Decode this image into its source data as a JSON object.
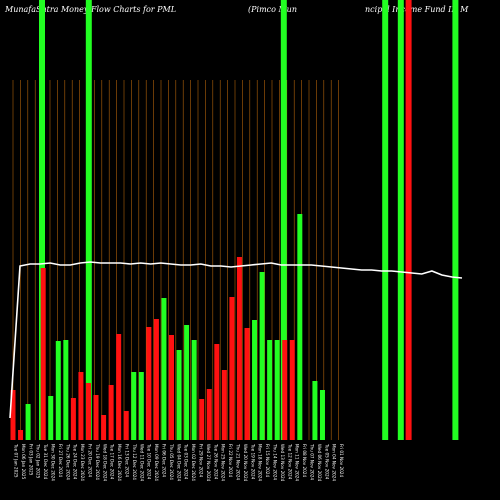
{
  "chart_data": {
    "type": "bar",
    "title_left": "MunafaSutra  Money Flow  Charts for PML",
    "title_mid": "(Pimco  Mun",
    "title_right": "ncipal Income  Fund II) M",
    "colors": {
      "up": "#22ff22",
      "down": "#ff1111",
      "grid": "#b0620a",
      "line": "#ffffff",
      "background": "#000000"
    },
    "categories": [
      "Tue 07 Jan 2025",
      "Mon 06 Jan 2025",
      "Fri 03 Jan 2025",
      "Thu 02 Jan 2025",
      "Tue 31 Dec 2024",
      "Mon 30 Dec 2024",
      "Fri 27 Dec 2024",
      "Thu 26 Dec 2024",
      "Tue 24 Dec 2024",
      "Mon 23 Dec 2024",
      "Fri 20 Dec 2024",
      "Thu 19 Dec 2024",
      "Wed 18 Dec 2024",
      "Tue 17 Dec 2024",
      "Mon 16 Dec 2024",
      "Fri 13 Dec 2024",
      "Thu 12 Dec 2024",
      "Wed 11 Dec 2024",
      "Tue 10 Dec 2024",
      "Mon 09 Dec 2024",
      "Fri 06 Dec 2024",
      "Thu 05 Dec 2024",
      "Wed 04 Dec 2024",
      "Tue 03 Dec 2024",
      "Mon 02 Dec 2024",
      "Fri 29 Nov 2024",
      "Wed 27 Nov 2024",
      "Tue 26 Nov 2024",
      "Mon 25 Nov 2024",
      "Fri 22 Nov 2024",
      "Thu 21 Nov 2024",
      "Wed 20 Nov 2024",
      "Tue 19 Nov 2024",
      "Mon 18 Nov 2024",
      "Fri 15 Nov 2024",
      "Thu 14 Nov 2024",
      "Wed 13 Nov 2024",
      "Tue 12 Nov 2024",
      "Mon 11 Nov 2024",
      "Fri 08 Nov 2024",
      "Thu 07 Nov 2024",
      "Wed 06 Nov 2024",
      "Tue 05 Nov 2024",
      "Mon 04 Nov 2024",
      "Fri 01 Nov 2024"
    ],
    "tick_labels": [
      "C 7.90 0.7%",
      "C 8.20 0.1%",
      "C 8.17 0.2%",
      "C 8.15 0.05%",
      "C 8.18 0.3%",
      "C 8.15 0.06%",
      "C 8.20 0.2%",
      "C 8.18 0.1%",
      "C 8.17 0.1%",
      "C 8.16 0.1%",
      "C 8.15 0.1%",
      "C 8.17 0.2%",
      "C 8.15 0.1%",
      "C 8.16 0.1%",
      "C 8.17 0.1%",
      "C 8.12 0.4%",
      "C 8.14 0.1%",
      "C 8.13 0.4%",
      "C 8.17 0.1%",
      "C 8.15 0.3%",
      "C 8.19 0.2%",
      "C 8.13 0.4%",
      "C 8.12 0.4%",
      "C 8.09 0.4%",
      "C 8.17 0.1%",
      "C 8.22 0.6%",
      "C 8.16 0.3%",
      "C 8.09 0.5%",
      "C 8.15 0.1%",
      "C 8.15 0.1%",
      "C 8.17 0.7%",
      "C 8.16 0.6%",
      "C 8.14 0.1%",
      "C 8.14 0.4%",
      "C 8.16 0.2%",
      "C 8.14 0.4%",
      "C 8.12 0.4%",
      "C 8.11 0.4%",
      "C 8.15 0.3%",
      "C 8.08 0.2%",
      "C 8.05 0.5%",
      "C 8.12 0.7%",
      "C 8.08 0.1%",
      "C 8.11 0.6%",
      "C 8.10 0.4%"
    ],
    "bar_values": [
      50,
      10,
      36,
      0,
      172,
      44,
      99,
      100,
      42,
      68,
      57,
      45,
      25,
      55,
      106,
      29,
      68,
      68,
      113,
      121,
      142,
      105,
      90,
      115,
      100,
      41,
      51,
      96,
      70,
      143,
      183,
      112,
      120,
      168,
      100,
      100,
      100,
      100,
      226,
      0,
      59,
      50,
      0,
      0,
      0
    ],
    "bar_colors": [
      "red",
      "red",
      "green",
      "green",
      "red",
      "green",
      "green",
      "green",
      "red",
      "red",
      "red",
      "red",
      "red",
      "red",
      "red",
      "red",
      "green",
      "green",
      "red",
      "red",
      "green",
      "red",
      "green",
      "green",
      "green",
      "red",
      "red",
      "red",
      "red",
      "red",
      "red",
      "red",
      "green",
      "green",
      "green",
      "green",
      "red",
      "red",
      "green",
      "green",
      "green",
      "green",
      "green",
      "green",
      "green"
    ],
    "full_height_bars": [
      {
        "index": 5,
        "color": "green"
      },
      {
        "index": 11,
        "color": "green"
      },
      {
        "index": 36,
        "color": "green"
      },
      {
        "index": 49,
        "color": "green"
      },
      {
        "index": 51,
        "color": "green"
      },
      {
        "index": 52,
        "color": "red"
      },
      {
        "index": 58,
        "color": "green"
      }
    ],
    "price_line": [
      22,
      174,
      176,
      176,
      177,
      175,
      175,
      177,
      178,
      177,
      177,
      177,
      176,
      177,
      176,
      177,
      176,
      175,
      175,
      176,
      174,
      174,
      173,
      174,
      175,
      176,
      177,
      175,
      175,
      175,
      175,
      174,
      173,
      172,
      171,
      170,
      170,
      169,
      169,
      168,
      167,
      166,
      169,
      165,
      163,
      162
    ],
    "ylim": [
      0,
      360
    ]
  }
}
